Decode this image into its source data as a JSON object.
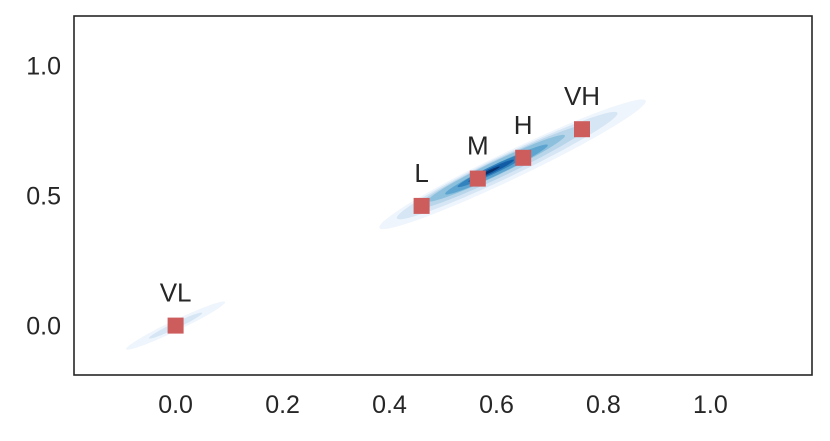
{
  "chart_data": {
    "type": "scatter",
    "title": "",
    "xlabel": "",
    "ylabel": "",
    "xlim": [
      -0.19,
      1.19
    ],
    "ylim": [
      -0.19,
      1.19
    ],
    "x_ticks": [
      "0.0",
      "0.2",
      "0.4",
      "0.6",
      "0.8",
      "1.0"
    ],
    "x_tick_values": [
      0.0,
      0.2,
      0.4,
      0.6,
      0.8,
      1.0
    ],
    "y_ticks": [
      "0.0",
      "0.5",
      "1.0"
    ],
    "y_tick_values": [
      0.0,
      0.5,
      1.0
    ],
    "grid": false,
    "legend": "none",
    "marker": "square",
    "marker_color": "#cd5c5c",
    "density_colormap": [
      "#eef5fc",
      "#d6e6f4",
      "#b8d5ea",
      "#8cc0dd",
      "#5da5d0",
      "#3282bd",
      "#115ca5",
      "#08306b"
    ],
    "points": [
      {
        "label": "VL",
        "x": 0.0,
        "y": 0.0
      },
      {
        "label": "L",
        "x": 0.46,
        "y": 0.46
      },
      {
        "label": "M",
        "x": 0.565,
        "y": 0.565
      },
      {
        "label": "H",
        "x": 0.65,
        "y": 0.645
      },
      {
        "label": "VH",
        "x": 0.76,
        "y": 0.755
      }
    ]
  }
}
